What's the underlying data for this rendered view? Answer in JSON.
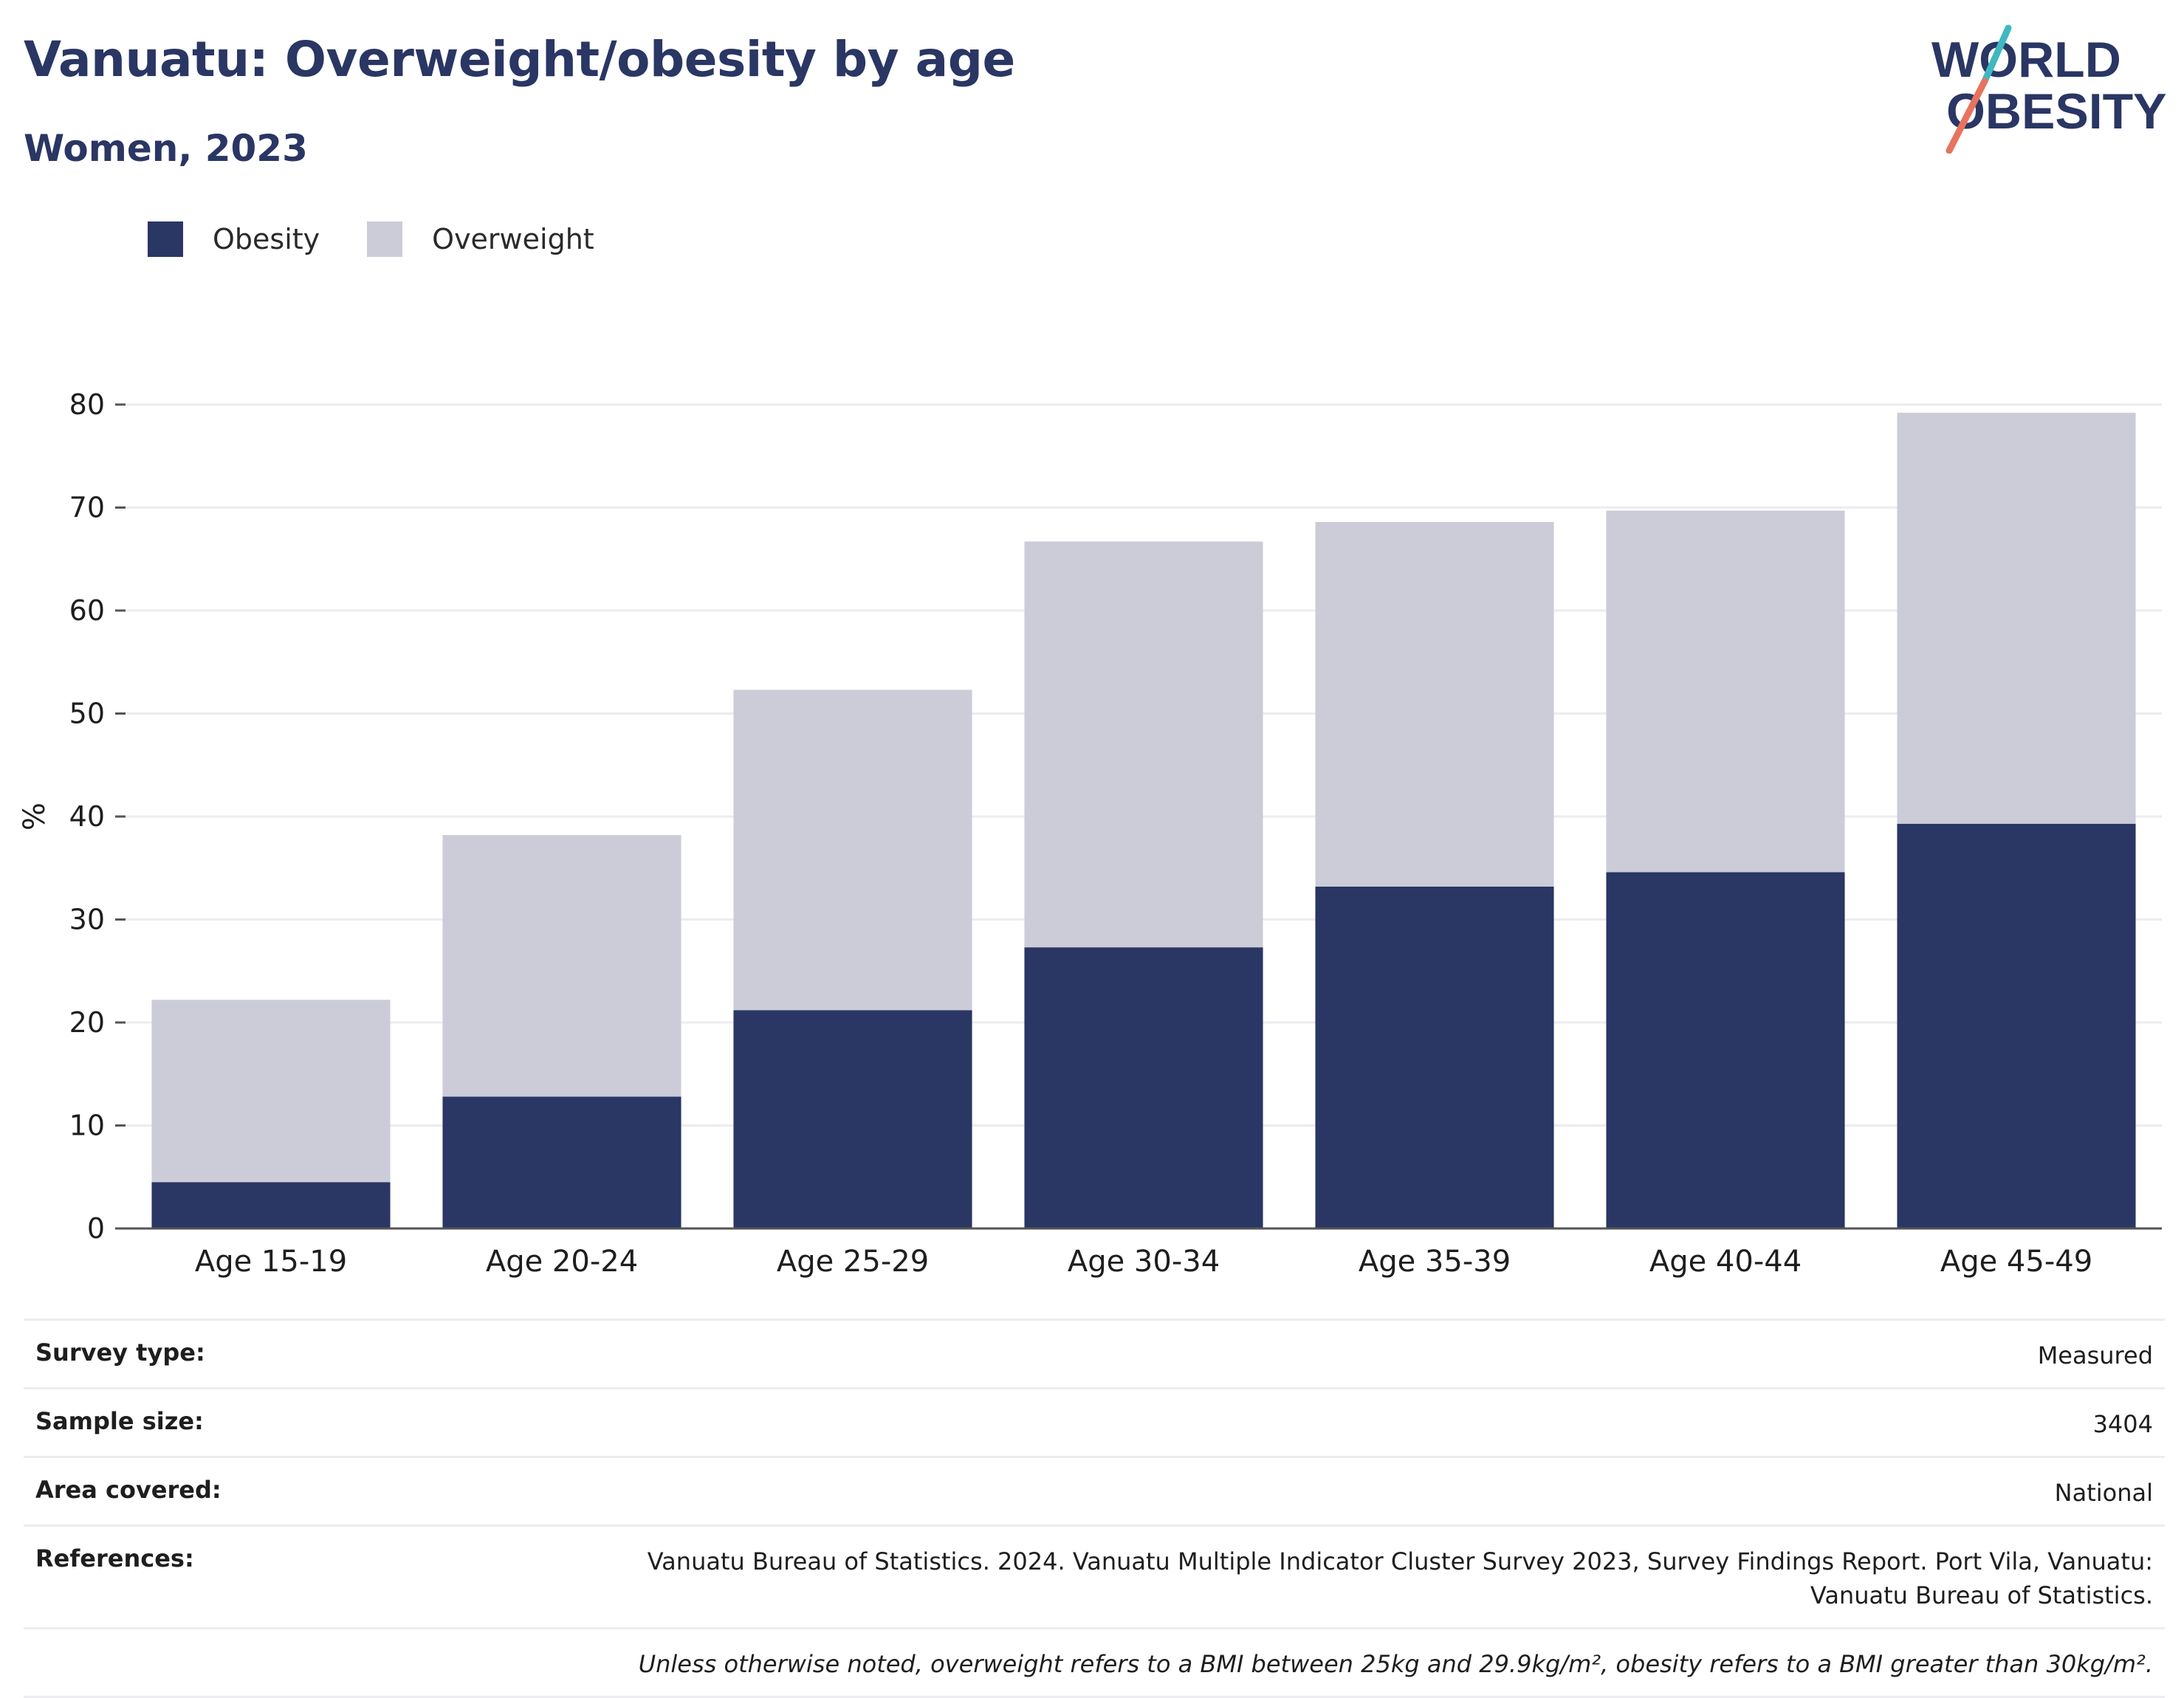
{
  "header": {
    "title": "Vanuatu: Overweight/obesity by age",
    "subtitle": "Women, 2023"
  },
  "logo": {
    "line1": "WORLD",
    "line2": "OBESITY",
    "colors": {
      "text": "#2a3663",
      "accent_top": "#3fb8c1",
      "accent_bottom": "#e8735e"
    }
  },
  "colors": {
    "obesity": "#2a3663",
    "overweight": "#cbccd8",
    "grid": "#ececf1",
    "axis": "#555555",
    "tick_text": "#1e1e1e"
  },
  "chart_data": {
    "type": "bar",
    "stacked": true,
    "title": "Vanuatu: Overweight/obesity by age",
    "subtitle": "Women, 2023",
    "xlabel": "",
    "ylabel": "%",
    "ylim": [
      0,
      80
    ],
    "yticks": [
      0,
      10,
      20,
      30,
      40,
      50,
      60,
      70,
      80
    ],
    "grid": true,
    "legend_position": "top-left",
    "categories": [
      "Age 15-19",
      "Age 20-24",
      "Age 25-29",
      "Age 30-34",
      "Age 35-39",
      "Age 40-44",
      "Age 45-49"
    ],
    "series": [
      {
        "name": "Obesity",
        "values": [
          4.5,
          12.8,
          21.2,
          27.3,
          33.2,
          34.6,
          39.3
        ]
      },
      {
        "name": "Overweight",
        "values": [
          17.7,
          25.4,
          31.1,
          39.4,
          35.4,
          35.1,
          39.9
        ]
      }
    ]
  },
  "meta": {
    "survey_type": {
      "label": "Survey type:",
      "value": "Measured"
    },
    "sample_size": {
      "label": "Sample size:",
      "value": "3404"
    },
    "area_covered": {
      "label": "Area covered:",
      "value": "National"
    },
    "references": {
      "label": "References:",
      "value": "Vanuatu Bureau of Statistics. 2024. Vanuatu Multiple Indicator Cluster Survey 2023, Survey Findings Report. Port Vila, Vanuatu: Vanuatu Bureau of Statistics."
    },
    "note": "Unless otherwise noted, overweight refers to a BMI between 25kg and 29.9kg/m², obesity refers to a BMI greater than 30kg/m²."
  }
}
